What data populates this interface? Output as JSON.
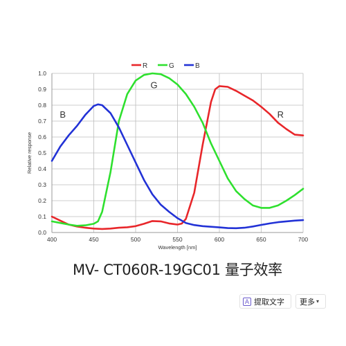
{
  "chart_data": {
    "type": "line",
    "title": "",
    "xlabel": "Wavelength [nm]",
    "ylabel": "Relative response",
    "xlim": [
      400,
      700
    ],
    "ylim": [
      0,
      1.0
    ],
    "xticks": [
      400,
      450,
      500,
      550,
      600,
      650,
      700
    ],
    "yticks": [
      0.0,
      0.1,
      0.2,
      0.3,
      0.4,
      0.5,
      0.6,
      0.7,
      0.8,
      0.9,
      1.0
    ],
    "xtick_labels": [
      "400",
      "450",
      "500",
      "550",
      "600",
      "650",
      "700"
    ],
    "ytick_labels": [
      "0.0",
      "0.1",
      "0.2",
      "0.3",
      "0.4",
      "0.5",
      "0.6",
      "0.7",
      "0.8",
      "0.9",
      "1.0"
    ],
    "grid": true,
    "legend_position": "top-center",
    "series": [
      {
        "name": "R",
        "color": "#e8262a",
        "points": [
          [
            400,
            0.1
          ],
          [
            410,
            0.075
          ],
          [
            420,
            0.05
          ],
          [
            430,
            0.038
          ],
          [
            440,
            0.03
          ],
          [
            450,
            0.025
          ],
          [
            460,
            0.022
          ],
          [
            470,
            0.025
          ],
          [
            480,
            0.03
          ],
          [
            490,
            0.033
          ],
          [
            500,
            0.04
          ],
          [
            510,
            0.055
          ],
          [
            520,
            0.072
          ],
          [
            530,
            0.07
          ],
          [
            540,
            0.057
          ],
          [
            550,
            0.05
          ],
          [
            555,
            0.056
          ],
          [
            560,
            0.085
          ],
          [
            570,
            0.25
          ],
          [
            580,
            0.55
          ],
          [
            590,
            0.82
          ],
          [
            595,
            0.9
          ],
          [
            600,
            0.92
          ],
          [
            610,
            0.915
          ],
          [
            620,
            0.89
          ],
          [
            630,
            0.86
          ],
          [
            640,
            0.83
          ],
          [
            650,
            0.79
          ],
          [
            660,
            0.745
          ],
          [
            670,
            0.69
          ],
          [
            680,
            0.65
          ],
          [
            690,
            0.615
          ],
          [
            700,
            0.61
          ]
        ]
      },
      {
        "name": "G",
        "color": "#2ee02e",
        "points": [
          [
            400,
            0.07
          ],
          [
            410,
            0.06
          ],
          [
            420,
            0.05
          ],
          [
            430,
            0.042
          ],
          [
            440,
            0.045
          ],
          [
            450,
            0.055
          ],
          [
            455,
            0.07
          ],
          [
            460,
            0.13
          ],
          [
            470,
            0.38
          ],
          [
            480,
            0.7
          ],
          [
            490,
            0.87
          ],
          [
            500,
            0.955
          ],
          [
            510,
            0.99
          ],
          [
            520,
            1.0
          ],
          [
            530,
            0.995
          ],
          [
            540,
            0.97
          ],
          [
            550,
            0.93
          ],
          [
            560,
            0.87
          ],
          [
            570,
            0.79
          ],
          [
            580,
            0.69
          ],
          [
            590,
            0.56
          ],
          [
            600,
            0.45
          ],
          [
            610,
            0.34
          ],
          [
            620,
            0.26
          ],
          [
            630,
            0.21
          ],
          [
            640,
            0.17
          ],
          [
            650,
            0.155
          ],
          [
            660,
            0.155
          ],
          [
            670,
            0.17
          ],
          [
            680,
            0.2
          ],
          [
            690,
            0.235
          ],
          [
            700,
            0.275
          ]
        ]
      },
      {
        "name": "B",
        "color": "#2232d6",
        "points": [
          [
            400,
            0.45
          ],
          [
            410,
            0.54
          ],
          [
            420,
            0.61
          ],
          [
            430,
            0.67
          ],
          [
            440,
            0.74
          ],
          [
            450,
            0.795
          ],
          [
            455,
            0.805
          ],
          [
            460,
            0.8
          ],
          [
            470,
            0.75
          ],
          [
            480,
            0.66
          ],
          [
            490,
            0.55
          ],
          [
            500,
            0.44
          ],
          [
            510,
            0.33
          ],
          [
            520,
            0.24
          ],
          [
            530,
            0.175
          ],
          [
            540,
            0.13
          ],
          [
            550,
            0.09
          ],
          [
            560,
            0.06
          ],
          [
            570,
            0.047
          ],
          [
            580,
            0.04
          ],
          [
            590,
            0.036
          ],
          [
            600,
            0.032
          ],
          [
            610,
            0.028
          ],
          [
            620,
            0.027
          ],
          [
            630,
            0.03
          ],
          [
            640,
            0.038
          ],
          [
            650,
            0.048
          ],
          [
            660,
            0.057
          ],
          [
            670,
            0.065
          ],
          [
            680,
            0.07
          ],
          [
            690,
            0.075
          ],
          [
            700,
            0.078
          ]
        ]
      }
    ],
    "annotations": [
      {
        "text": "B",
        "x": 413,
        "y": 0.74,
        "color": "#333333"
      },
      {
        "text": "G",
        "x": 522,
        "y": 0.925,
        "color": "#333333"
      },
      {
        "text": "R",
        "x": 673,
        "y": 0.74,
        "color": "#333333"
      }
    ]
  },
  "caption": {
    "text": "MV- CT060R-19GC01 量子效率"
  },
  "toolbar": {
    "extract_text_label": "提取文字",
    "extract_text_icon": "text-recognition-icon",
    "more_label": "更多",
    "more_icon": "chevron-down-icon"
  }
}
